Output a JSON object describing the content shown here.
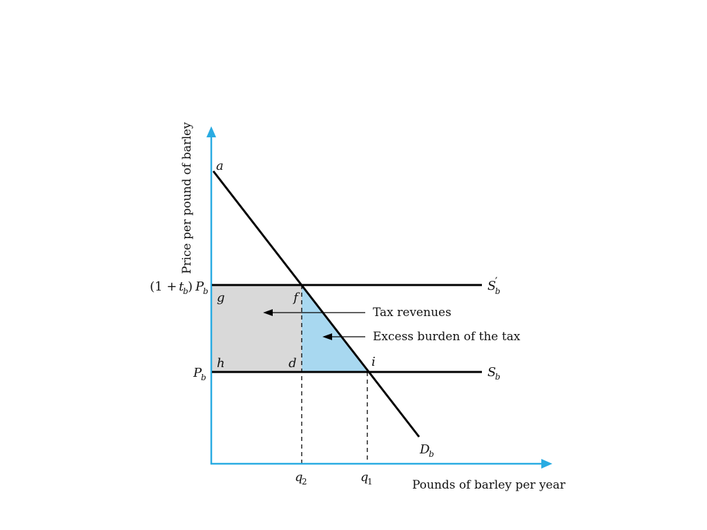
{
  "labels": {
    "y_axis": "Price per pound of barley",
    "x_axis": "Pounds of barley per year",
    "point_a": "a",
    "point_f": "f",
    "point_g": "g",
    "point_h": "h",
    "point_d": "d",
    "point_i": "i",
    "tax_price_open": "(1 + ",
    "tax_price_t": "t",
    "tax_price_sub_b": "b",
    "tax_price_close": ") ",
    "tax_price_P": "P",
    "tax_price_P_sub": "b",
    "price_P": "P",
    "price_P_sub": "b",
    "supply_taxed_S": "S",
    "supply_taxed_sub": "b",
    "supply_taxed_prime": "′",
    "supply_S": "S",
    "supply_sub": "b",
    "demand_D": "D",
    "demand_sub": "b",
    "q2": "q",
    "q2_sub": "2",
    "q1": "q",
    "q1_sub": "1",
    "tax_revenues": "Tax revenues",
    "excess_burden": "Excess burden of the tax"
  },
  "colors": {
    "axis": "#29abe2",
    "line": "#000000",
    "tax_revenue_fill": "#d9d9d9",
    "excess_burden_fill": "#a8d8f0"
  }
}
